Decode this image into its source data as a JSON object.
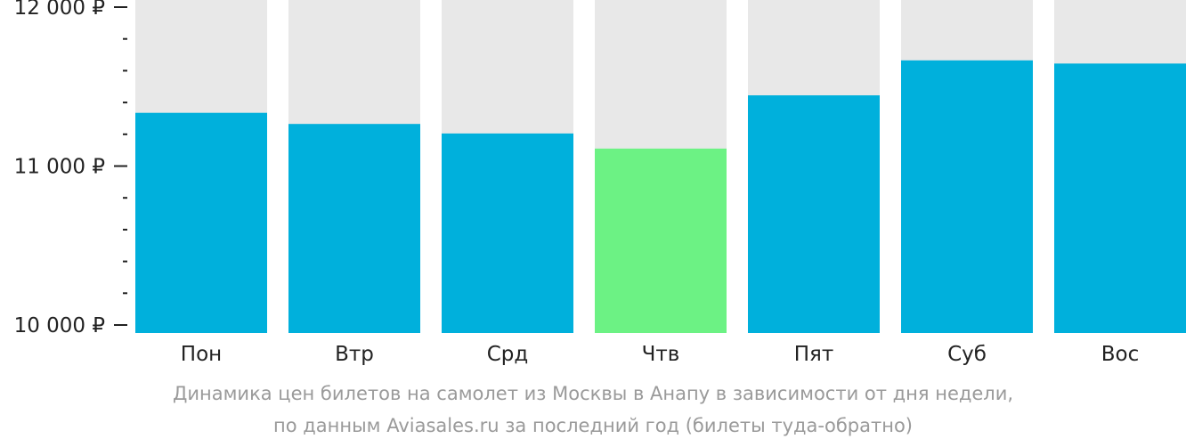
{
  "chart_data": {
    "type": "bar",
    "categories": [
      "Пон",
      "Втр",
      "Срд",
      "Чтв",
      "Пят",
      "Суб",
      "Вос"
    ],
    "values": [
      11335,
      11265,
      11205,
      11110,
      11445,
      11665,
      11645
    ],
    "highlight_index": 3,
    "ylim": [
      10000,
      12000
    ],
    "y_tick_labels": [
      {
        "value": 12000,
        "label": "12 000 ₽"
      },
      {
        "value": 11000,
        "label": "11 000 ₽"
      },
      {
        "value": 10000,
        "label": "10 000 ₽"
      }
    ],
    "y_minor_step": 200,
    "grid": false,
    "background_track": true,
    "colors": {
      "bar": "#00b0dc",
      "highlight": "#6cf284",
      "track": "#e8e8e8",
      "axis": "#222222"
    }
  },
  "caption": {
    "line1": "Динамика цен билетов на самолет из Москвы в Анапу в зависимости от дня недели,",
    "line2": "по данным Aviasales.ru за последний год (билеты туда-обратно)"
  }
}
